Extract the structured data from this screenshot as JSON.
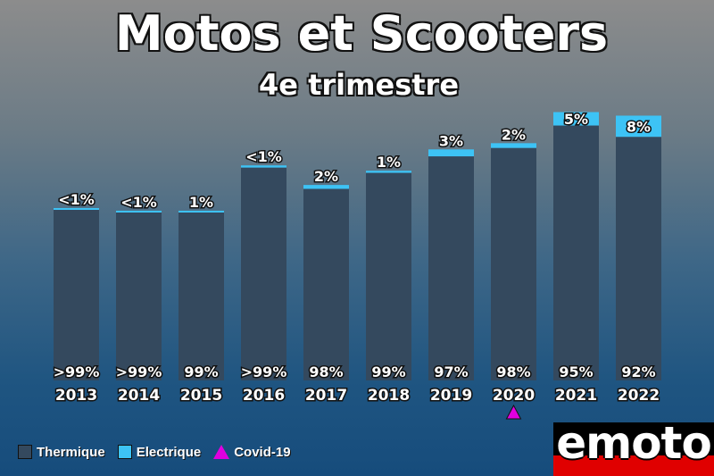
{
  "chart_data": {
    "type": "bar",
    "stacked": true,
    "title": "Motos et Scooters",
    "subtitle": "4e trimestre",
    "categories": [
      "2013",
      "2014",
      "2015",
      "2016",
      "2017",
      "2018",
      "2019",
      "2020",
      "2021",
      "2022"
    ],
    "totals": [
      194,
      191,
      191,
      242,
      220,
      236,
      260,
      267,
      302,
      298
    ],
    "series": [
      {
        "name": "Thermique",
        "color": "#34495e",
        "share_labels": [
          ">99%",
          ">99%",
          "99%",
          ">99%",
          "98%",
          "99%",
          "97%",
          "98%",
          "95%",
          "92%"
        ]
      },
      {
        "name": "Electrique",
        "color": "#3dc3f5",
        "share_labels": [
          "<1%",
          "<1%",
          "1%",
          "<1%",
          "2%",
          "1%",
          "3%",
          "2%",
          "5%",
          "8%"
        ]
      }
    ],
    "electric_share": [
      0.01,
      0.01,
      0.01,
      0.01,
      0.02,
      0.01,
      0.03,
      0.02,
      0.05,
      0.08
    ],
    "ylim": [
      0,
      310
    ],
    "annotations": [
      {
        "category": "2020",
        "marker": "triangle",
        "label": "Covid-19",
        "color": "#e000e0"
      }
    ],
    "legend": "bottom-left"
  },
  "logo": {
    "text": "emoto"
  }
}
